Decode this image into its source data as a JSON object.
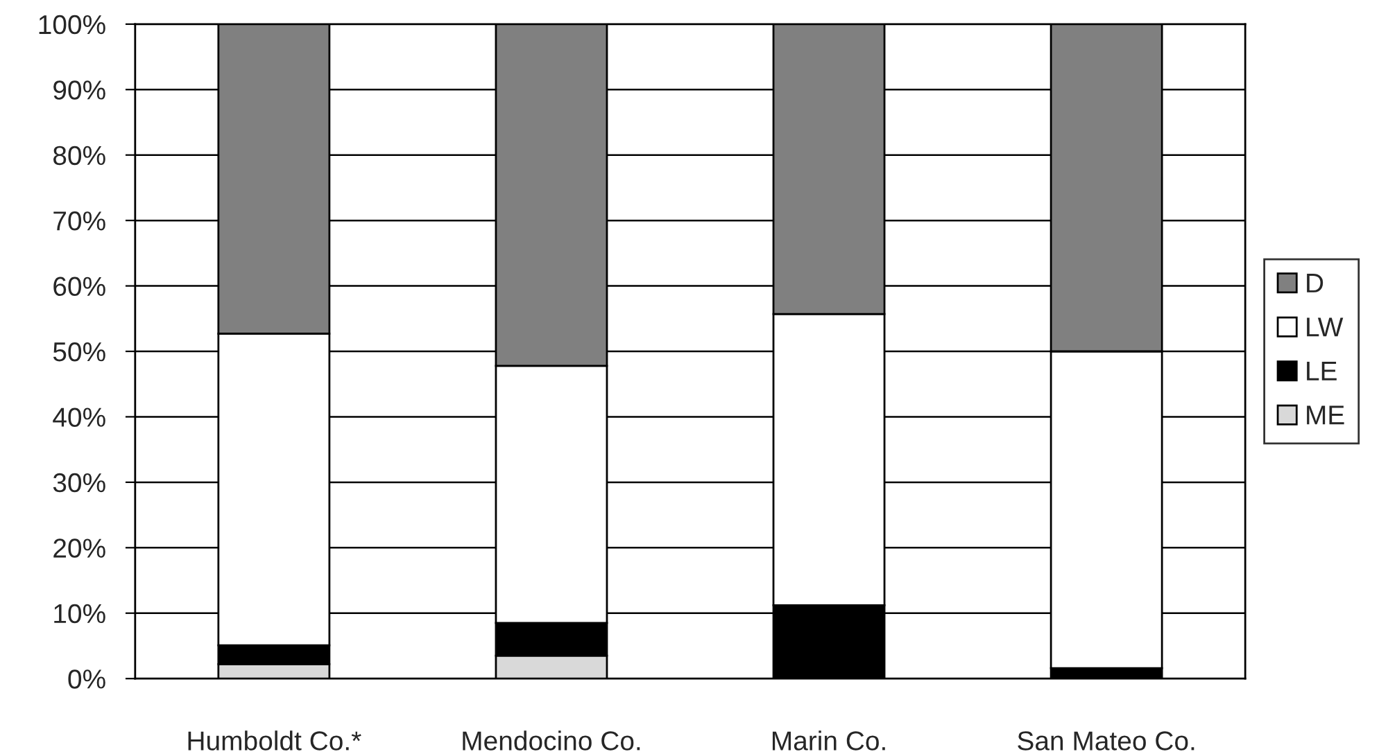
{
  "chart_data": {
    "type": "bar",
    "stacked": true,
    "categories": [
      "Humboldt Co.*",
      "Mendocino Co.",
      "Marin Co.",
      "San Mateo Co."
    ],
    "series": [
      {
        "name": "ME",
        "color": "#d9d9d9",
        "values": [
          2.2,
          3.5,
          0,
          0
        ]
      },
      {
        "name": "LE",
        "color": "#000000",
        "values": [
          2.9,
          5.0,
          11.2,
          1.6
        ]
      },
      {
        "name": "LW",
        "color": "#ffffff",
        "values": [
          47.6,
          39.3,
          44.5,
          48.4
        ]
      },
      {
        "name": "D",
        "color": "#808080",
        "values": [
          47.3,
          52.2,
          44.3,
          50.0
        ]
      }
    ],
    "ylim": [
      0,
      100
    ],
    "yticks": [
      {
        "value": 0,
        "label": "0%"
      },
      {
        "value": 10,
        "label": "10%"
      },
      {
        "value": 20,
        "label": "20%"
      },
      {
        "value": 30,
        "label": "30%"
      },
      {
        "value": 40,
        "label": "40%"
      },
      {
        "value": 50,
        "label": "50%"
      },
      {
        "value": 60,
        "label": "60%"
      },
      {
        "value": 70,
        "label": "70%"
      },
      {
        "value": 80,
        "label": "80%"
      },
      {
        "value": 90,
        "label": "90%"
      },
      {
        "value": 100,
        "label": "100%"
      }
    ],
    "grid": "y",
    "legend": "right"
  }
}
